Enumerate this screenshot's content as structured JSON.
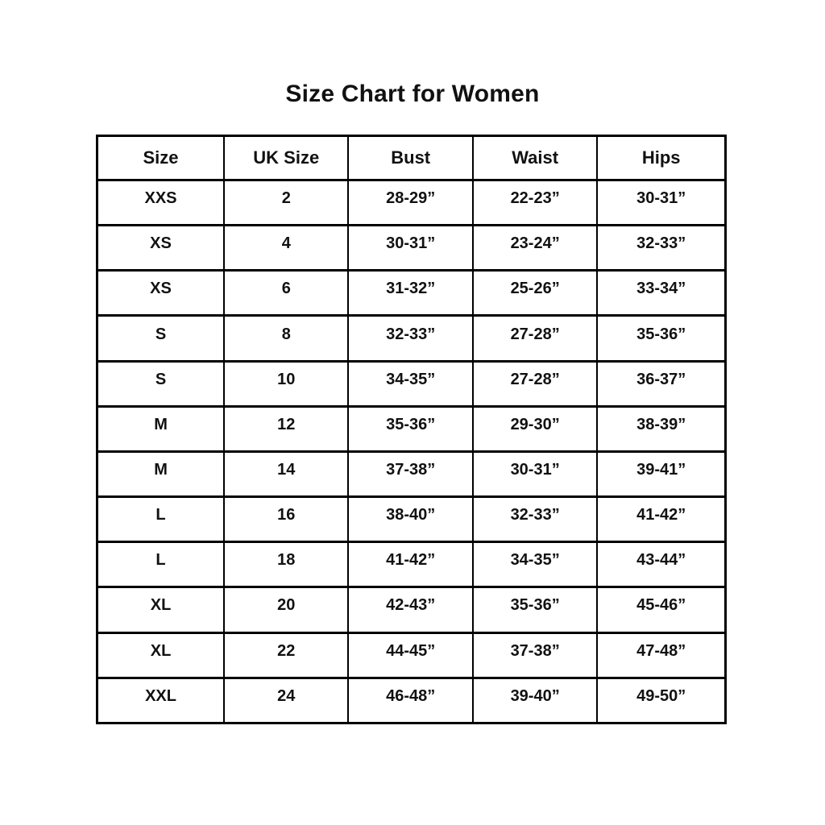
{
  "page": {
    "title": "Size Chart for Women"
  },
  "table": {
    "headers": [
      "Size",
      "UK Size",
      "Bust",
      "Waist",
      "Hips"
    ],
    "rows": [
      {
        "cells": [
          "XXS",
          "2",
          "28-29”",
          "22-23”",
          "30-31”"
        ]
      },
      {
        "cells": [
          "XS",
          "4",
          "30-31”",
          "23-24”",
          "32-33”"
        ]
      },
      {
        "cells": [
          "XS",
          "6",
          "31-32”",
          "25-26”",
          "33-34”"
        ]
      },
      {
        "cells": [
          "S",
          "8",
          "32-33”",
          "27-28”",
          "35-36”"
        ]
      },
      {
        "cells": [
          "S",
          "10",
          "34-35”",
          "27-28”",
          "36-37”"
        ]
      },
      {
        "cells": [
          "M",
          "12",
          "35-36”",
          "29-30”",
          "38-39”"
        ]
      },
      {
        "cells": [
          "M",
          "14",
          "37-38”",
          "30-31”",
          "39-41”"
        ]
      },
      {
        "cells": [
          "L",
          "16",
          "38-40”",
          "32-33”",
          "41-42”"
        ]
      },
      {
        "cells": [
          "L",
          "18",
          "41-42”",
          "34-35”",
          "43-44”"
        ]
      },
      {
        "cells": [
          "XL",
          "20",
          "42-43”",
          "35-36”",
          "45-46”"
        ]
      },
      {
        "cells": [
          "XL",
          "22",
          "44-45”",
          "37-38”",
          "47-48”"
        ]
      },
      {
        "cells": [
          "XXL",
          "24",
          "46-48”",
          "39-40”",
          "49-50”"
        ]
      }
    ]
  },
  "colors": {
    "background": "#ffffff",
    "border": "#000000",
    "text": "#111111"
  }
}
